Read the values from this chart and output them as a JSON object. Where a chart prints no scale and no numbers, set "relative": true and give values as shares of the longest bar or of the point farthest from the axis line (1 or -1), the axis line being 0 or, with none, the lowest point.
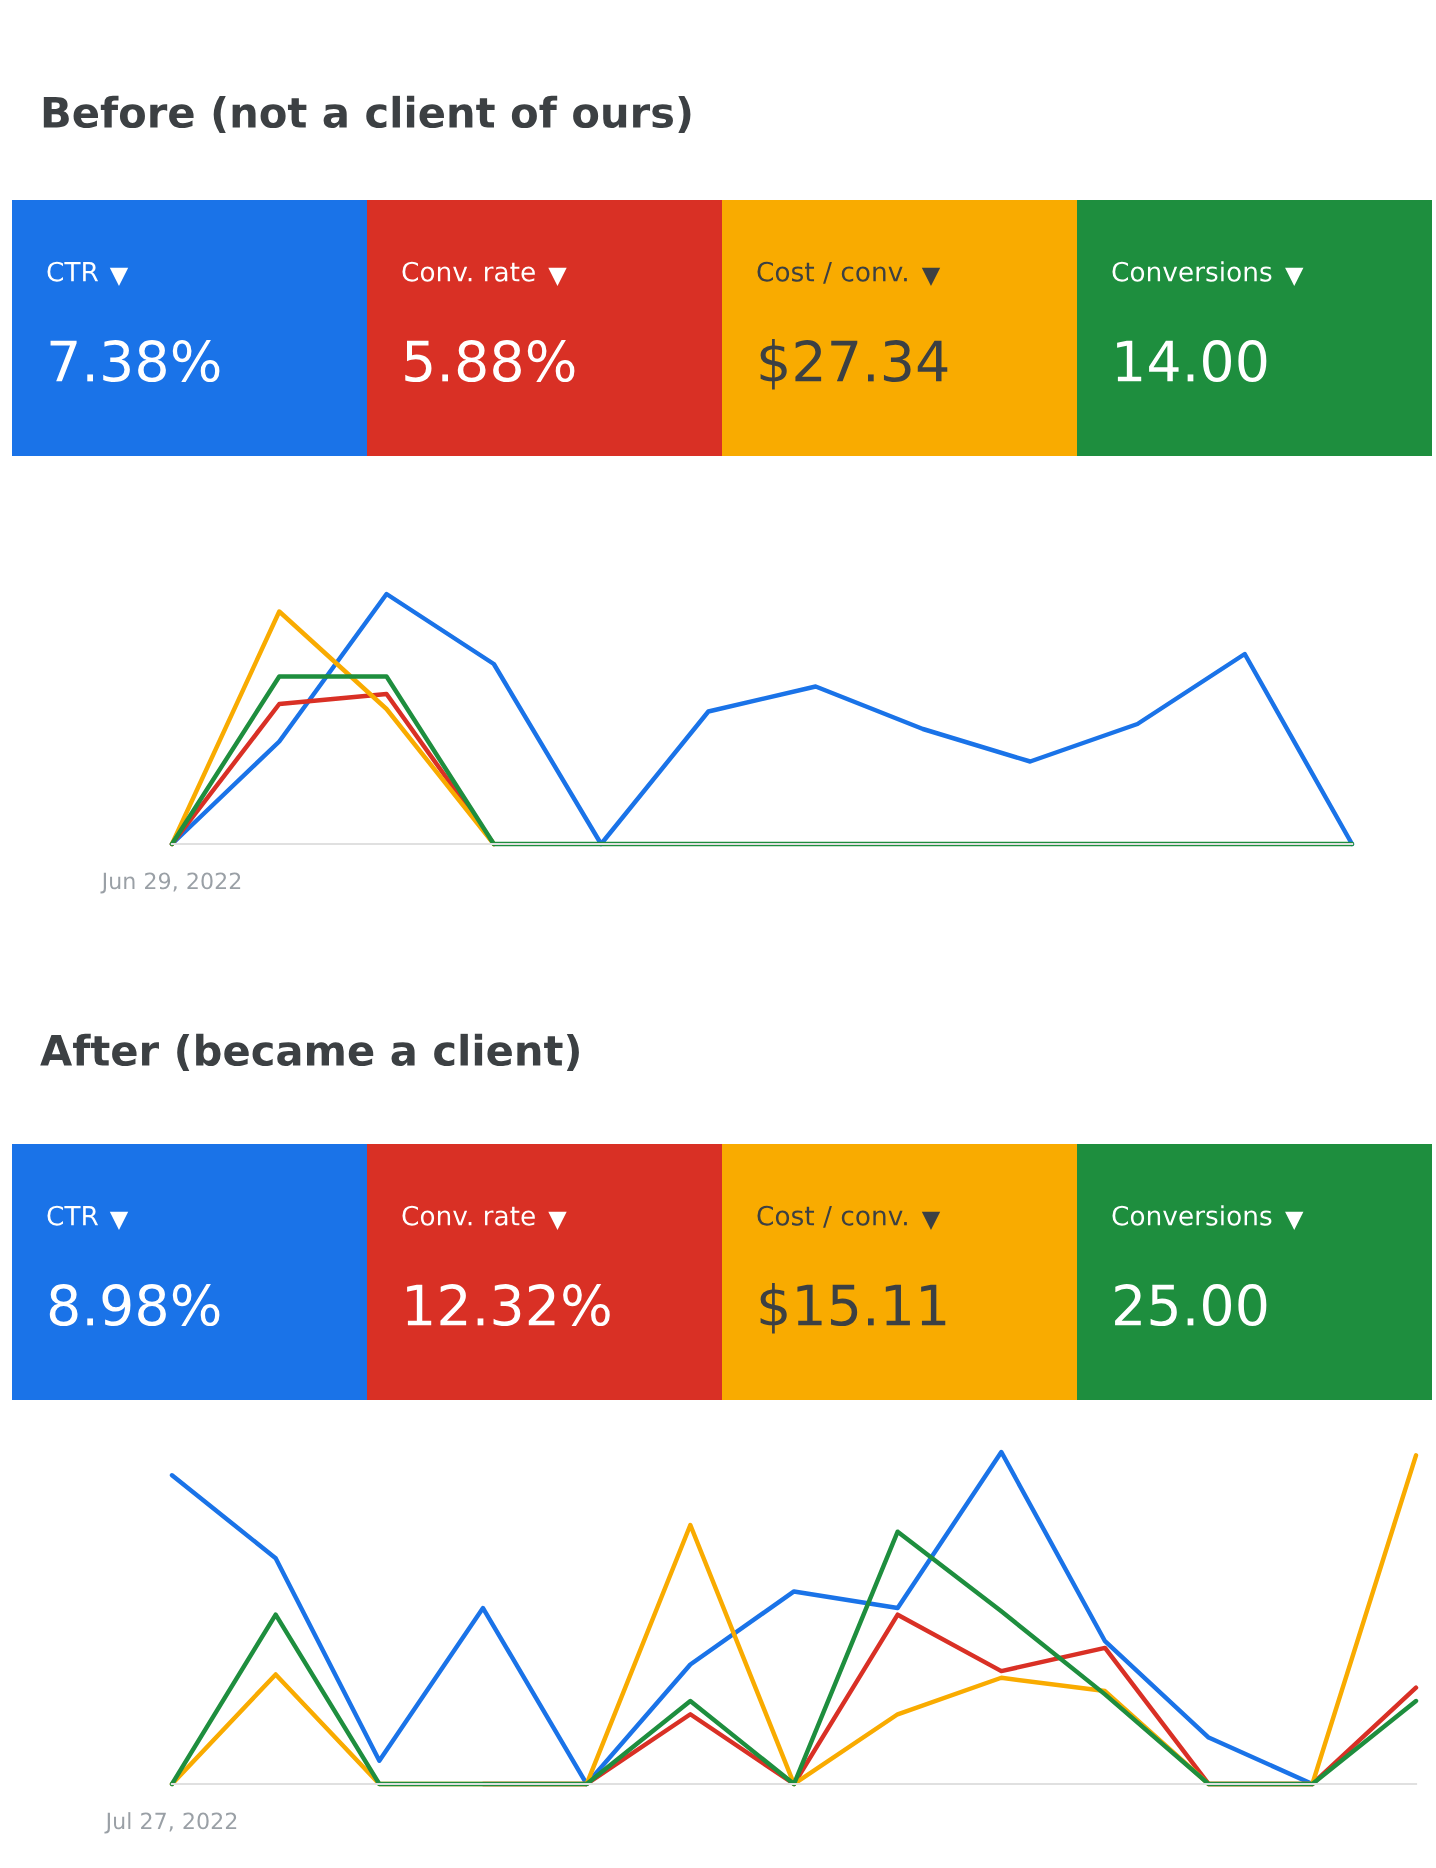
{
  "chart_data": [
    {
      "type": "line",
      "relative": true,
      "title": "Before (not a client of ours)",
      "annotations": [
        "CTR",
        "7.38%",
        "Conv. rate",
        "5.88%",
        "Cost / conv.",
        "$27.34",
        "Conversions",
        "14.00",
        "Jun 29, 2022"
      ],
      "categories": [
        null,
        null,
        null,
        null,
        null,
        null,
        null,
        null,
        null,
        null,
        null,
        null
      ],
      "series": [
        {
          "color": "#1a73e8",
          "values": [
            0,
            0.41,
            1,
            0.72,
            0,
            0.53,
            0.63,
            0.46,
            0.33,
            0.48,
            0.76,
            0
          ]
        },
        {
          "color": "#d93025",
          "values": [
            0,
            0.56,
            0.6,
            0,
            null,
            null,
            null,
            null,
            null,
            null,
            null,
            null
          ]
        },
        {
          "color": "#f9ab00",
          "values": [
            0,
            0.93,
            0.54,
            0,
            null,
            null,
            null,
            null,
            null,
            null,
            null,
            null
          ]
        },
        {
          "color": "#1e8e3e",
          "values": [
            0,
            0.67,
            0.67,
            0,
            0,
            0,
            0,
            0,
            0,
            0,
            0,
            0
          ]
        }
      ]
    },
    {
      "type": "line",
      "relative": true,
      "title": "After (became a client)",
      "annotations": [
        "CTR",
        "8.98%",
        "Conv. rate",
        "12.32%",
        "Cost / conv.",
        "$15.11",
        "Conversions",
        "25.00",
        "Jul 27, 2022"
      ],
      "categories": [
        null,
        null,
        null,
        null,
        null,
        null,
        null,
        null,
        null,
        null,
        null,
        null,
        null
      ],
      "series": [
        {
          "color": "#1a73e8",
          "values": [
            0.93,
            0.68,
            0.07,
            0.53,
            0,
            0.36,
            0.58,
            0.53,
            1,
            0.43,
            0.14,
            0,
            null
          ]
        },
        {
          "color": "#d93025",
          "values": [
            null,
            null,
            null,
            0,
            0,
            0.21,
            0,
            0.51,
            0.34,
            0.41,
            0,
            0,
            0.29
          ]
        },
        {
          "color": "#f9ab00",
          "values": [
            0,
            0.33,
            0,
            0,
            0,
            0.78,
            0,
            0.21,
            0.32,
            0.28,
            0,
            0,
            0.99
          ]
        },
        {
          "color": "#1e8e3e",
          "values": [
            0,
            0.51,
            0,
            0,
            0,
            0.25,
            0,
            0.76,
            0.52,
            0.27,
            0,
            0,
            0.25
          ]
        }
      ]
    }
  ]
}
